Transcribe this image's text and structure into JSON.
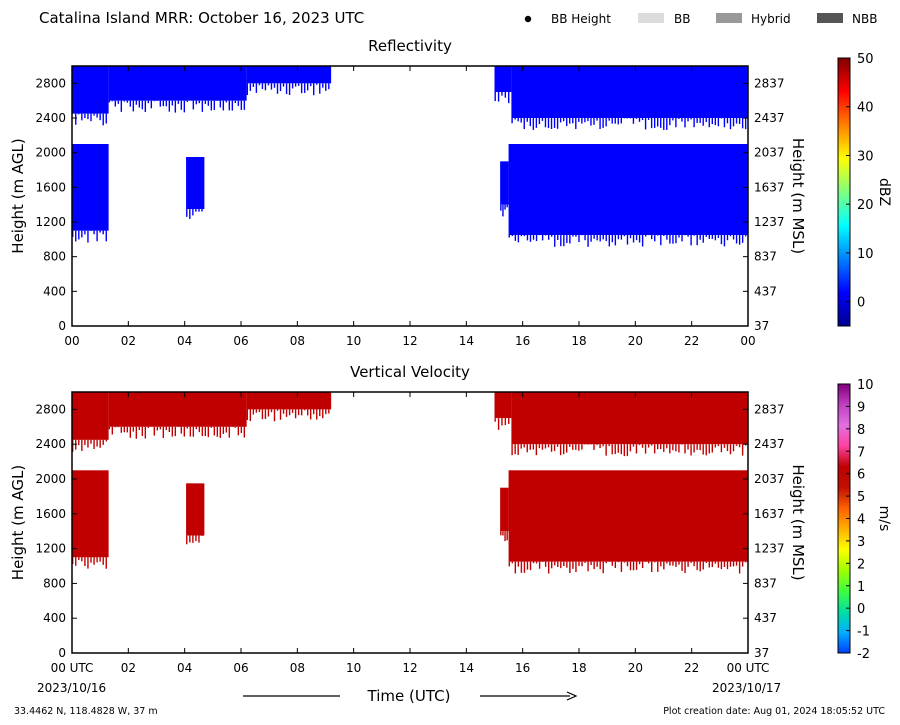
{
  "header": {
    "title": "Catalina Island MRR:  October 16, 2023 UTC",
    "legend": [
      {
        "label": "BB Height",
        "marker": "dot",
        "color": "#000000"
      },
      {
        "label": "BB",
        "marker": "rect",
        "color": "#dcdcdc"
      },
      {
        "label": "Hybrid",
        "marker": "rect",
        "color": "#999999"
      },
      {
        "label": "NBB",
        "marker": "rect",
        "color": "#555555"
      }
    ]
  },
  "footer": {
    "location": "33.4462 N, 118.4828 W, 37 m",
    "created": "Plot creation date: Aug 01, 2024 18:05:52 UTC"
  },
  "xaxis": {
    "label": "Time (UTC)",
    "ticks": [
      0,
      2,
      4,
      6,
      8,
      10,
      12,
      14,
      16,
      18,
      20,
      22,
      24
    ],
    "labels_top": [
      "00",
      "02",
      "04",
      "06",
      "08",
      "10",
      "12",
      "14",
      "16",
      "18",
      "20",
      "22",
      "00"
    ],
    "labels_bottom": [
      "00 UTC",
      "02",
      "04",
      "06",
      "08",
      "10",
      "12",
      "14",
      "16",
      "18",
      "20",
      "22",
      "00 UTC"
    ],
    "start_date": "2023/10/16",
    "end_date": "2023/10/17"
  },
  "chart_data": [
    {
      "type": "heatmap",
      "title": "Reflectivity",
      "ylabel": "Height (m AGL)",
      "ylabel_right": "Height (m MSL)",
      "xlim": [
        0,
        24
      ],
      "ylim": [
        0,
        3000
      ],
      "yticks": [
        0,
        400,
        800,
        1200,
        1600,
        2000,
        2400,
        2800
      ],
      "yticks_right": [
        37,
        437,
        837,
        1237,
        1637,
        2037,
        2437,
        2837
      ],
      "colorbar": {
        "label": "dBZ",
        "min": -5,
        "max": 50,
        "ticks": [
          0,
          10,
          20,
          30,
          40,
          50
        ],
        "colors": [
          "#00008f",
          "#0000ff",
          "#0080ff",
          "#00ffff",
          "#80ff80",
          "#ffff00",
          "#ff8000",
          "#ff0000",
          "#800000"
        ]
      },
      "regions": [
        {
          "t": [
            0.0,
            1.3
          ],
          "h": [
            2450,
            3000
          ],
          "value": 2
        },
        {
          "t": [
            1.3,
            6.2
          ],
          "h": [
            2600,
            3000
          ],
          "value": 2
        },
        {
          "t": [
            6.2,
            9.2
          ],
          "h": [
            2800,
            3000
          ],
          "value": 3
        },
        {
          "t": [
            0.0,
            1.3
          ],
          "h": [
            1100,
            2100
          ],
          "value": 0
        },
        {
          "t": [
            4.05,
            4.7
          ],
          "h": [
            1350,
            1950
          ],
          "value": 0
        },
        {
          "t": [
            15.0,
            15.6
          ],
          "h": [
            2700,
            3000
          ],
          "value": 4
        },
        {
          "t": [
            15.6,
            24.0
          ],
          "h": [
            2400,
            3000
          ],
          "value": 4
        },
        {
          "t": [
            15.2,
            15.5
          ],
          "h": [
            1400,
            1900
          ],
          "value": 0
        },
        {
          "t": [
            15.5,
            24.0
          ],
          "h": [
            1050,
            2100
          ],
          "value": 0
        }
      ]
    },
    {
      "type": "heatmap",
      "title": "Vertical Velocity",
      "ylabel": "Height (m AGL)",
      "ylabel_right": "Height (m MSL)",
      "xlim": [
        0,
        24
      ],
      "ylim": [
        0,
        3000
      ],
      "yticks": [
        0,
        400,
        800,
        1200,
        1600,
        2000,
        2400,
        2800
      ],
      "yticks_right": [
        37,
        437,
        837,
        1237,
        1637,
        2037,
        2437,
        2837
      ],
      "colorbar": {
        "label": "m/s",
        "min": -2,
        "max": 10,
        "ticks": [
          -2,
          -1,
          0,
          1,
          2,
          3,
          4,
          5,
          6,
          7,
          8,
          9,
          10
        ],
        "colors": [
          "#0040ff",
          "#00b0ff",
          "#00e0a0",
          "#40ff40",
          "#a0ff00",
          "#ffff00",
          "#ffb000",
          "#ff6000",
          "#c01000",
          "#c00000",
          "#ff40a0",
          "#e070e0",
          "#c040c0",
          "#800080"
        ]
      },
      "regions": [
        {
          "t": [
            0.0,
            1.3
          ],
          "h": [
            2450,
            3000
          ],
          "value": 6
        },
        {
          "t": [
            1.3,
            6.2
          ],
          "h": [
            2600,
            3000
          ],
          "value": 6
        },
        {
          "t": [
            6.2,
            9.2
          ],
          "h": [
            2800,
            3000
          ],
          "value": 6
        },
        {
          "t": [
            0.0,
            1.3
          ],
          "h": [
            1100,
            2100
          ],
          "value": 6
        },
        {
          "t": [
            4.05,
            4.7
          ],
          "h": [
            1350,
            1950
          ],
          "value": 6
        },
        {
          "t": [
            15.0,
            15.6
          ],
          "h": [
            2700,
            3000
          ],
          "value": 6
        },
        {
          "t": [
            15.6,
            24.0
          ],
          "h": [
            2400,
            3000
          ],
          "value": 6
        },
        {
          "t": [
            15.2,
            15.5
          ],
          "h": [
            1400,
            1900
          ],
          "value": 6
        },
        {
          "t": [
            15.5,
            24.0
          ],
          "h": [
            1050,
            2100
          ],
          "value": 6
        }
      ]
    }
  ]
}
